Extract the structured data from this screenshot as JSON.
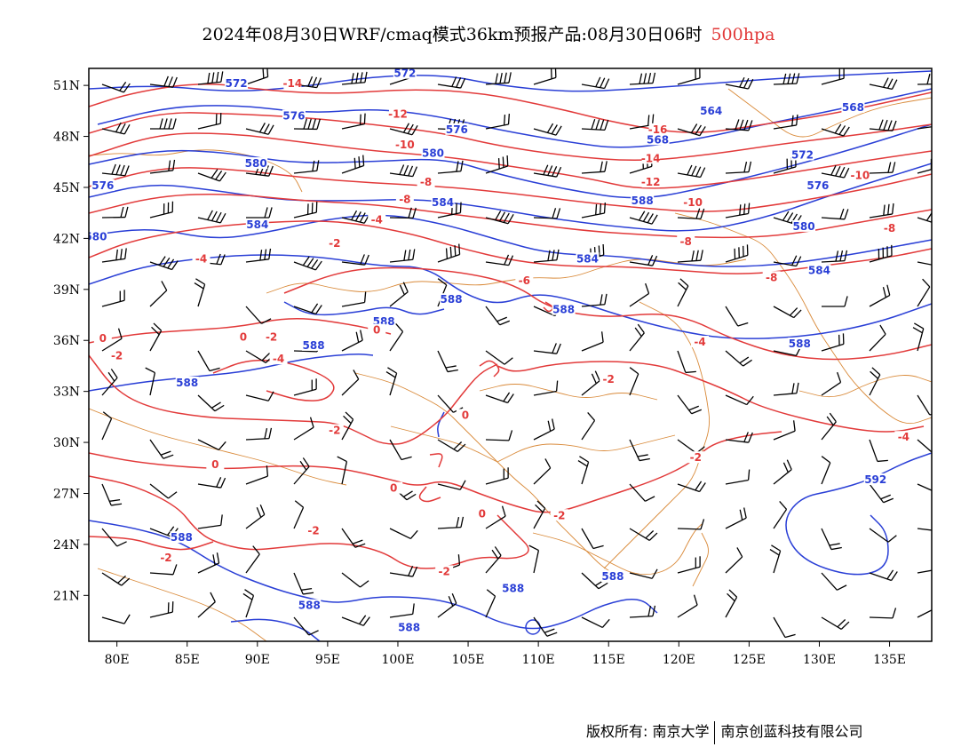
{
  "title": {
    "main": "2024年08月30日WRF/cmaq模式36km预报产品:08月30日06时",
    "level": "500hpa"
  },
  "axes": {
    "lon_labels": [
      "80E",
      "85E",
      "90E",
      "95E",
      "100E",
      "105E",
      "110E",
      "115E",
      "120E",
      "125E",
      "130E",
      "135E"
    ],
    "lon_values": [
      80,
      85,
      90,
      95,
      100,
      105,
      110,
      115,
      120,
      125,
      130,
      135
    ],
    "lat_labels": [
      "51N",
      "48N",
      "45N",
      "42N",
      "39N",
      "36N",
      "33N",
      "30N",
      "27N",
      "24N",
      "21N"
    ],
    "lat_values": [
      51,
      48,
      45,
      42,
      39,
      36,
      33,
      30,
      27,
      24,
      21
    ],
    "lon_range": [
      78,
      138
    ],
    "lat_range": [
      18.3,
      52
    ]
  },
  "height_contours": {
    "unit_hint": "dagpm",
    "color": "#2a3fd6",
    "labels": [
      {
        "text": "572",
        "lon": 88.5,
        "lat": 51.0
      },
      {
        "text": "572",
        "lon": 100.5,
        "lat": 51.6
      },
      {
        "text": "576",
        "lon": 92.6,
        "lat": 49.1
      },
      {
        "text": "576",
        "lon": 104.2,
        "lat": 48.3
      },
      {
        "text": "580",
        "lon": 89.9,
        "lat": 46.3
      },
      {
        "text": "580",
        "lon": 102.5,
        "lat": 46.9
      },
      {
        "text": "576",
        "lon": 79.0,
        "lat": 45.0
      },
      {
        "text": "584",
        "lon": 103.2,
        "lat": 44.0
      },
      {
        "text": "584",
        "lon": 90.0,
        "lat": 42.7
      },
      {
        "text": "580",
        "lon": 78.5,
        "lat": 42.0
      },
      {
        "text": "588",
        "lon": 103.8,
        "lat": 38.3
      },
      {
        "text": "588",
        "lon": 99.0,
        "lat": 37.0
      },
      {
        "text": "588",
        "lon": 94.0,
        "lat": 35.6
      },
      {
        "text": "588",
        "lon": 85.0,
        "lat": 33.4
      },
      {
        "text": "588",
        "lon": 111.8,
        "lat": 37.7
      },
      {
        "text": "584",
        "lon": 113.5,
        "lat": 40.7
      },
      {
        "text": "588",
        "lon": 117.4,
        "lat": 44.1
      },
      {
        "text": "568",
        "lon": 118.5,
        "lat": 47.7
      },
      {
        "text": "564",
        "lon": 122.3,
        "lat": 49.4
      },
      {
        "text": "568",
        "lon": 132.4,
        "lat": 49.6
      },
      {
        "text": "572",
        "lon": 128.8,
        "lat": 46.8
      },
      {
        "text": "576",
        "lon": 129.9,
        "lat": 45.0
      },
      {
        "text": "580",
        "lon": 128.9,
        "lat": 42.6
      },
      {
        "text": "584",
        "lon": 130.0,
        "lat": 40.0
      },
      {
        "text": "588",
        "lon": 128.6,
        "lat": 35.7
      },
      {
        "text": "592",
        "lon": 134.0,
        "lat": 27.7
      },
      {
        "text": "588",
        "lon": 84.6,
        "lat": 24.3
      },
      {
        "text": "588",
        "lon": 108.2,
        "lat": 21.3
      },
      {
        "text": "588",
        "lon": 115.3,
        "lat": 22.0
      },
      {
        "text": "588",
        "lon": 93.7,
        "lat": 20.3
      },
      {
        "text": "588",
        "lon": 100.8,
        "lat": 19.0
      }
    ]
  },
  "temperature_contours": {
    "unit_hint": "°C",
    "color": "#e23a3a",
    "labels": [
      {
        "text": "-14",
        "lon": 92.5,
        "lat": 51.0
      },
      {
        "text": "-12",
        "lon": 100.0,
        "lat": 49.2
      },
      {
        "text": "-10",
        "lon": 100.5,
        "lat": 47.4
      },
      {
        "text": "-8",
        "lon": 102.0,
        "lat": 45.2
      },
      {
        "text": "-8",
        "lon": 100.5,
        "lat": 44.2
      },
      {
        "text": "-4",
        "lon": 98.5,
        "lat": 43.0
      },
      {
        "text": "-2",
        "lon": 95.5,
        "lat": 41.6
      },
      {
        "text": "-4",
        "lon": 86.0,
        "lat": 40.7
      },
      {
        "text": "-16",
        "lon": 118.5,
        "lat": 48.3
      },
      {
        "text": "-14",
        "lon": 118.0,
        "lat": 46.6
      },
      {
        "text": "-12",
        "lon": 118.0,
        "lat": 45.2
      },
      {
        "text": "-10",
        "lon": 121.0,
        "lat": 44.0
      },
      {
        "text": "-8",
        "lon": 120.5,
        "lat": 41.7
      },
      {
        "text": "-10",
        "lon": 132.9,
        "lat": 45.6
      },
      {
        "text": "-8",
        "lon": 135.0,
        "lat": 42.5
      },
      {
        "text": "-8",
        "lon": 126.6,
        "lat": 39.6
      },
      {
        "text": "-6",
        "lon": 109.0,
        "lat": 39.4
      },
      {
        "text": "0",
        "lon": 98.5,
        "lat": 36.5
      },
      {
        "text": "-2",
        "lon": 91.0,
        "lat": 36.1
      },
      {
        "text": "0",
        "lon": 79.0,
        "lat": 36.0
      },
      {
        "text": "-2",
        "lon": 80.0,
        "lat": 35.0
      },
      {
        "text": "-4",
        "lon": 91.5,
        "lat": 34.8
      },
      {
        "text": "0",
        "lon": 89.0,
        "lat": 36.1
      },
      {
        "text": "-4",
        "lon": 121.5,
        "lat": 35.8
      },
      {
        "text": "-2",
        "lon": 115.0,
        "lat": 33.6
      },
      {
        "text": "0",
        "lon": 104.8,
        "lat": 31.5
      },
      {
        "text": "-2",
        "lon": 95.5,
        "lat": 30.6
      },
      {
        "text": "-4",
        "lon": 136.0,
        "lat": 30.2
      },
      {
        "text": "-2",
        "lon": 121.2,
        "lat": 29.0
      },
      {
        "text": "0",
        "lon": 87.0,
        "lat": 28.6
      },
      {
        "text": "0",
        "lon": 99.7,
        "lat": 27.2
      },
      {
        "text": "0",
        "lon": 106.0,
        "lat": 25.7
      },
      {
        "text": "-2",
        "lon": 111.5,
        "lat": 25.6
      },
      {
        "text": "-2",
        "lon": 94.0,
        "lat": 24.7
      },
      {
        "text": "-2",
        "lon": 83.5,
        "lat": 23.1
      },
      {
        "text": "-2",
        "lon": 103.3,
        "lat": 22.3
      }
    ]
  },
  "footer": {
    "left": "版权所有: 南京大学",
    "right": "南京创蓝科技有限公司"
  }
}
